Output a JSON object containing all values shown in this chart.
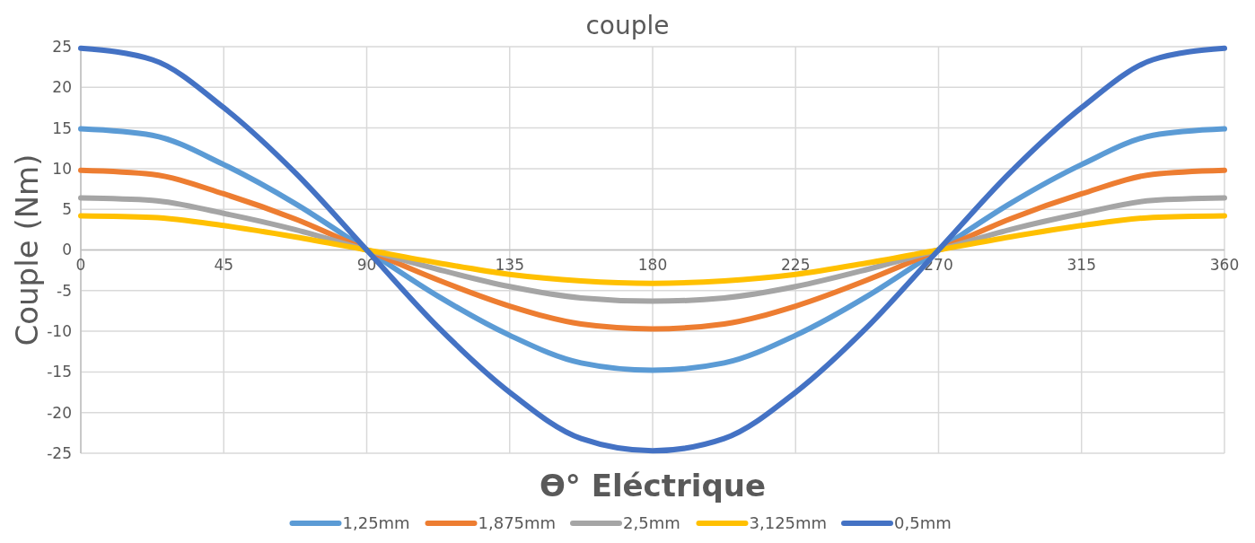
{
  "chart_data": {
    "type": "line",
    "title": "couple",
    "xlabel": "ϴ° Eléctrique",
    "ylabel": "Couple (Nm)",
    "x": [
      0,
      22.5,
      45,
      67.5,
      90,
      112.5,
      135,
      157.5,
      180,
      202.5,
      225,
      247.5,
      270,
      292.5,
      315,
      337.5,
      360
    ],
    "xlim": [
      0,
      360
    ],
    "xticks": [
      0,
      45,
      90,
      135,
      180,
      225,
      270,
      315,
      360
    ],
    "ylim": [
      -25,
      25
    ],
    "yticks": [
      -25,
      -20,
      -15,
      -10,
      -5,
      0,
      5,
      10,
      15,
      20,
      25
    ],
    "grid": true,
    "legend": "bottom",
    "marker": "none",
    "line_style": "solid",
    "series": [
      {
        "name": "1,25mm",
        "color": "#5b9bd5",
        "values": [
          14.9,
          14.1,
          10.5,
          5.7,
          0,
          -5.7,
          -10.5,
          -13.9,
          -14.8,
          -13.9,
          -10.5,
          -5.7,
          0,
          5.7,
          10.5,
          14.1,
          14.9
        ]
      },
      {
        "name": "1,875mm",
        "color": "#ed7d31",
        "values": [
          9.8,
          9.3,
          6.9,
          3.8,
          0,
          -3.7,
          -6.9,
          -9.1,
          -9.7,
          -9.1,
          -6.9,
          -3.7,
          0,
          3.8,
          6.9,
          9.3,
          9.8
        ]
      },
      {
        "name": "2,5mm",
        "color": "#a5a5a5",
        "values": [
          6.4,
          6.1,
          4.5,
          2.5,
          0,
          -2.4,
          -4.5,
          -5.9,
          -6.3,
          -5.9,
          -4.5,
          -2.4,
          0,
          2.5,
          4.5,
          6.1,
          6.4
        ]
      },
      {
        "name": "3,125mm",
        "color": "#ffc000",
        "values": [
          4.2,
          4.0,
          3.0,
          1.6,
          0,
          -1.6,
          -3.0,
          -3.8,
          -4.1,
          -3.8,
          -3.0,
          -1.6,
          0,
          1.6,
          3.0,
          4.0,
          4.2
        ]
      },
      {
        "name": "0,5mm",
        "color": "#4472c4",
        "values": [
          24.8,
          23.4,
          17.5,
          9.5,
          0,
          -9.5,
          -17.5,
          -23.2,
          -24.7,
          -23.2,
          -17.5,
          -9.5,
          0,
          9.5,
          17.5,
          23.4,
          24.8
        ]
      }
    ]
  }
}
